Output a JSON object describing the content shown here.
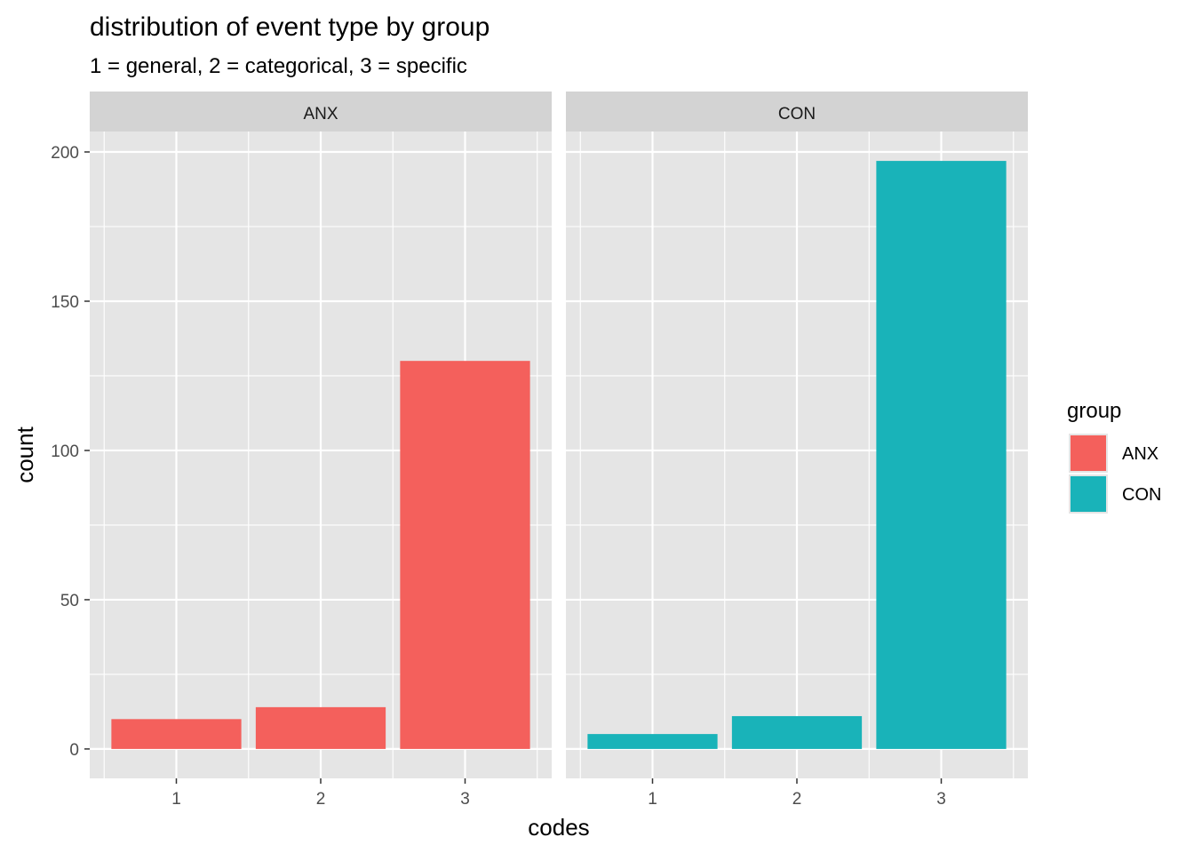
{
  "chart_data": {
    "type": "bar",
    "title": "distribution of event type by group",
    "subtitle": "1 = general, 2 = categorical, 3 = specific",
    "xlabel": "codes",
    "ylabel": "count",
    "categories": [
      "1",
      "2",
      "3"
    ],
    "yticks": [
      0,
      50,
      100,
      150,
      200
    ],
    "ylim": [
      -9.85,
      206.85
    ],
    "grid": true,
    "facets": [
      {
        "label": "ANX",
        "series": "ANX",
        "values": [
          10,
          14,
          130
        ]
      },
      {
        "label": "CON",
        "series": "CON",
        "values": [
          5,
          11,
          197
        ]
      }
    ],
    "legend": {
      "title": "group",
      "position": "right",
      "entries": [
        {
          "name": "ANX",
          "color": "#F8766D"
        },
        {
          "name": "CON",
          "color": "#00BFC4"
        }
      ]
    },
    "colors": {
      "ANX": "#F4605C",
      "CON": "#19B3B9",
      "panel_bg": "#E5E5E5",
      "strip_bg": "#D3D3D3",
      "grid": "#FFFFFF",
      "tick_text": "#4D4D4D"
    }
  }
}
